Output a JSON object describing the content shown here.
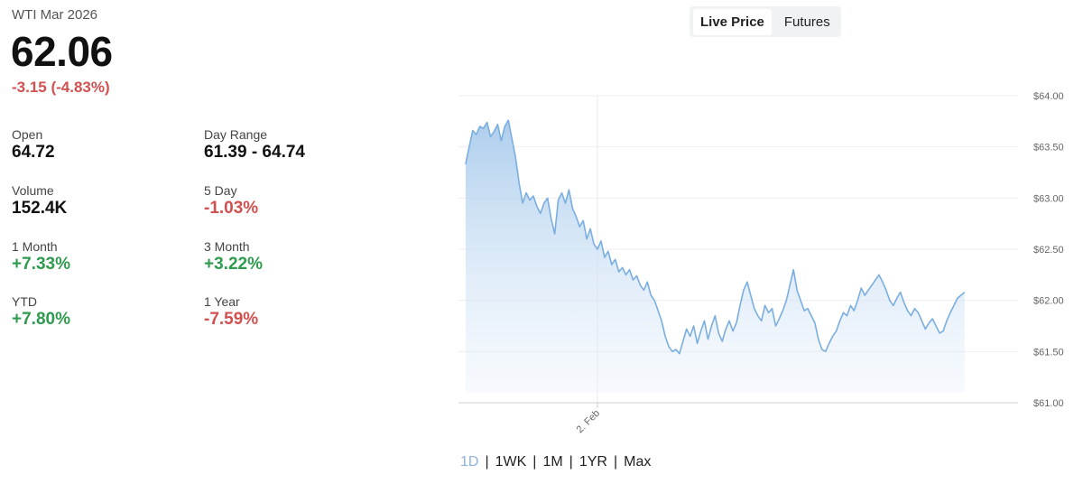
{
  "instrument": "WTI Mar 2026",
  "price": "62.06",
  "change": "-3.15 (-4.83%)",
  "stats": [
    {
      "label": "Open",
      "value": "64.72",
      "tone": "neutral"
    },
    {
      "label": "Day Range",
      "value": "61.39 - 64.74",
      "tone": "neutral"
    },
    {
      "label": "Volume",
      "value": "152.4K",
      "tone": "neutral"
    },
    {
      "label": "5 Day",
      "value": "-1.03%",
      "tone": "negative"
    },
    {
      "label": "1 Month",
      "value": "+7.33%",
      "tone": "positive"
    },
    {
      "label": "3 Month",
      "value": "+3.22%",
      "tone": "positive"
    },
    {
      "label": "YTD",
      "value": "+7.80%",
      "tone": "positive"
    },
    {
      "label": "1 Year",
      "value": "-7.59%",
      "tone": "negative"
    }
  ],
  "toggle": {
    "live_price": "Live Price",
    "futures": "Futures",
    "active": "live_price"
  },
  "ranges": {
    "items": [
      "1D",
      "1WK",
      "1M",
      "1YR",
      "Max"
    ],
    "active": "1D"
  },
  "colors": {
    "negative": "#d2504f",
    "positive": "#2e9b4e",
    "line": "#7aaee0",
    "fill_top": "#a9cbec"
  },
  "chart_data": {
    "type": "area",
    "ylim": [
      61.0,
      64.0
    ],
    "y_ticks": [
      "$61.00",
      "$61.50",
      "$62.00",
      "$62.50",
      "$63.00",
      "$63.50",
      "$64.00"
    ],
    "y_tick_values": [
      61.0,
      61.5,
      62.0,
      62.5,
      63.0,
      63.5,
      64.0
    ],
    "x_ticks": [
      {
        "label": "2. Feb",
        "index": 37
      }
    ],
    "x_range": [
      -2,
      155
    ],
    "grid": true,
    "series": [
      {
        "values": [
          63.33,
          63.5,
          63.66,
          63.62,
          63.7,
          63.68,
          63.74,
          63.6,
          63.65,
          63.72,
          63.56,
          63.7,
          63.76,
          63.58,
          63.4,
          63.15,
          62.95,
          63.05,
          62.98,
          63.02,
          62.92,
          62.85,
          62.95,
          63.0,
          62.8,
          62.65,
          62.98,
          63.05,
          62.95,
          63.08,
          62.9,
          62.82,
          62.72,
          62.78,
          62.6,
          62.7,
          62.55,
          62.5,
          62.58,
          62.42,
          62.48,
          62.35,
          62.4,
          62.28,
          62.32,
          62.25,
          62.3,
          62.2,
          62.24,
          62.15,
          62.1,
          62.18,
          62.05,
          62.0,
          61.9,
          61.8,
          61.65,
          61.55,
          61.5,
          61.52,
          61.48,
          61.6,
          61.72,
          61.65,
          61.75,
          61.58,
          61.7,
          61.8,
          61.62,
          61.75,
          61.85,
          61.68,
          61.6,
          61.72,
          61.8,
          61.7,
          61.78,
          61.95,
          62.1,
          62.18,
          62.05,
          61.92,
          61.85,
          61.8,
          61.95,
          61.88,
          61.92,
          61.75,
          61.82,
          61.9,
          62.0,
          62.15,
          62.3,
          62.1,
          62.0,
          61.9,
          61.92,
          61.85,
          61.78,
          61.62,
          61.52,
          61.5,
          61.58,
          61.65,
          61.7,
          61.8,
          61.88,
          61.85,
          61.95,
          61.9,
          62.0,
          62.12,
          62.05,
          62.1,
          62.15,
          62.2,
          62.25,
          62.18,
          62.1,
          62.0,
          61.95,
          62.02,
          62.08,
          61.98,
          61.9,
          61.85,
          61.92,
          61.88,
          61.8,
          61.72,
          61.78,
          61.82,
          61.75,
          61.68,
          61.7,
          61.8,
          61.88,
          61.95,
          62.02,
          62.05,
          62.08
        ]
      }
    ]
  }
}
